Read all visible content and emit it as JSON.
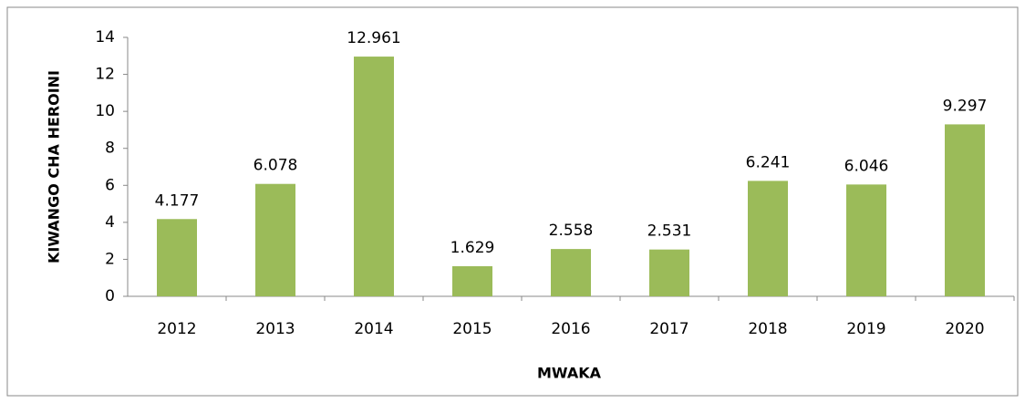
{
  "chart_data": {
    "type": "bar",
    "x_label": "MWAKA",
    "y_label": "KIWANGO CHA HEROINI",
    "categories": [
      "2012",
      "2013",
      "2014",
      "2015",
      "2016",
      "2017",
      "2018",
      "2019",
      "2020"
    ],
    "values": [
      4.177,
      6.078,
      12.961,
      1.629,
      2.558,
      2.531,
      6.241,
      6.046,
      9.297
    ],
    "color": "#9bbb59",
    "ylim": [
      0,
      14
    ],
    "yticks": [
      0,
      2,
      4,
      6,
      8,
      10,
      12,
      14
    ],
    "grid": false
  }
}
